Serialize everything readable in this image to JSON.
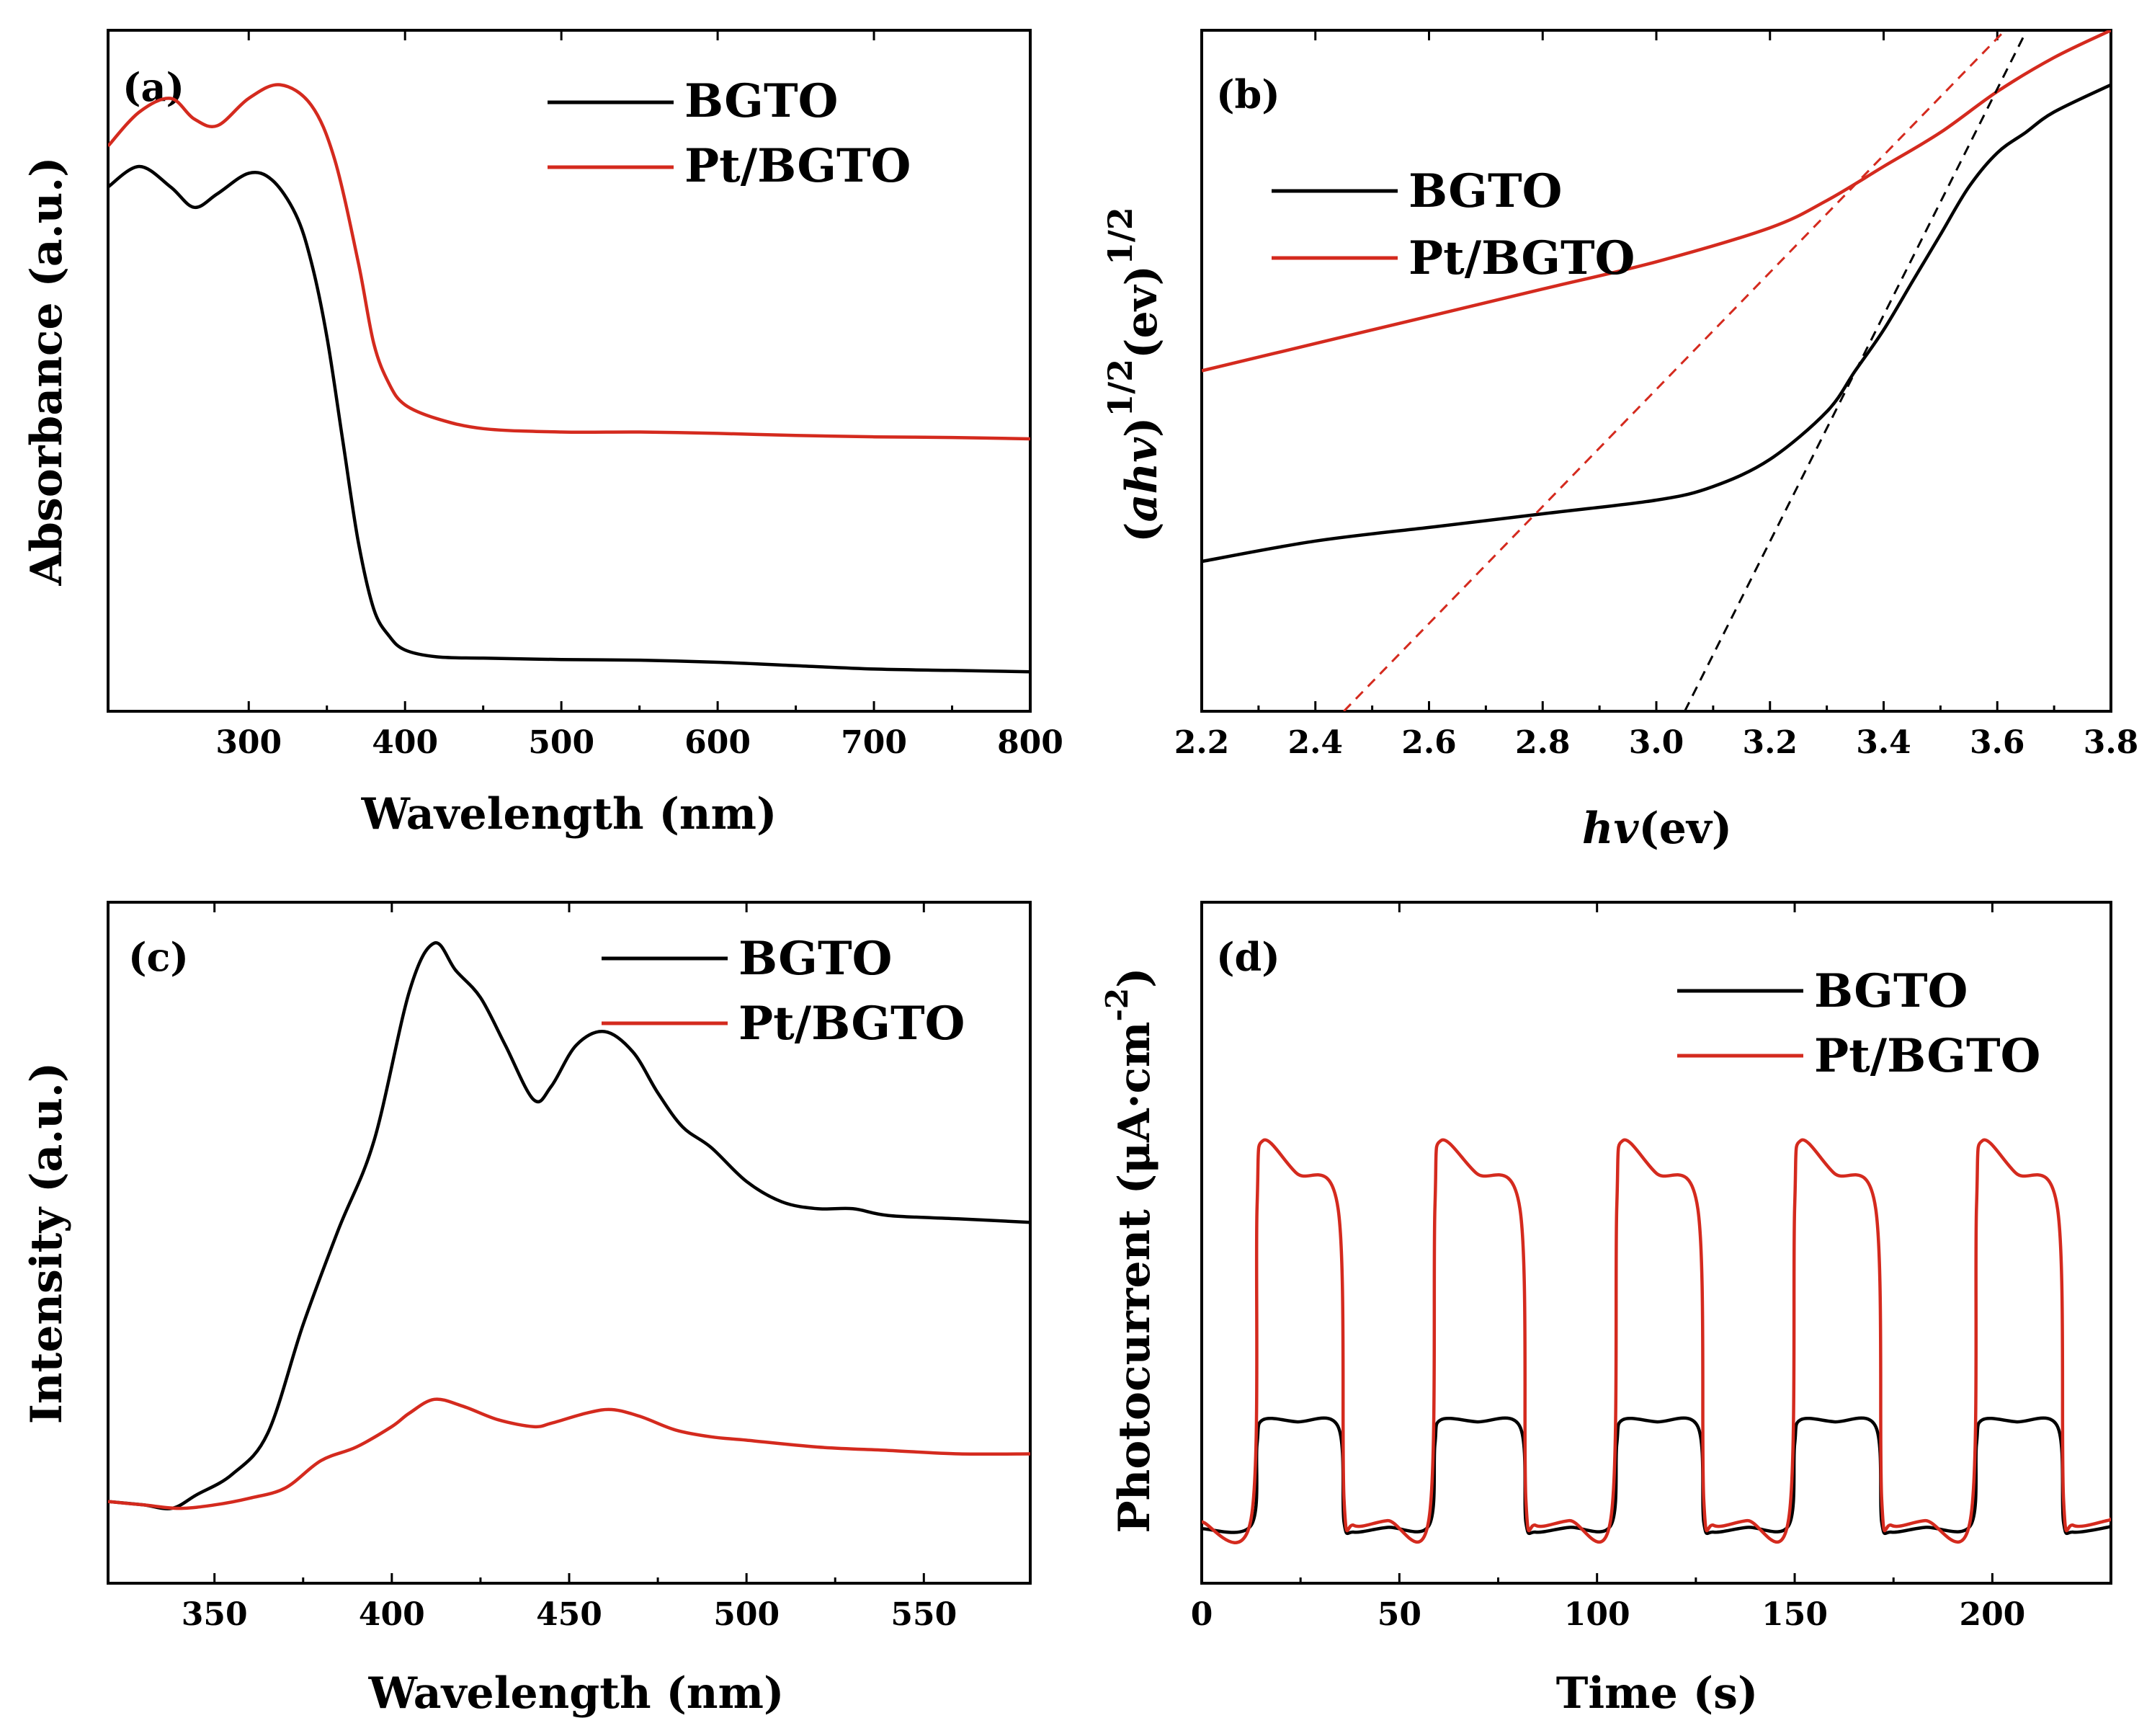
{
  "legend_labels": {
    "bgto": "BGTO",
    "pt_bgto": "Pt/BGTO"
  },
  "colors": {
    "bgto": "#000000",
    "pt_bgto": "#d42a1e",
    "axis": "#000000"
  },
  "chart_data": [
    {
      "id": "a",
      "type": "line",
      "panel_label": "(a)",
      "title": "",
      "xlabel": "Wavelength (nm)",
      "ylabel": "Absorbance (a.u.)",
      "xlim": [
        210,
        800
      ],
      "ylim": [
        0,
        1.0
      ],
      "xticks": [
        300,
        400,
        500,
        600,
        700,
        800
      ],
      "yticks_shown": false,
      "legend": [
        "BGTO",
        "Pt/BGTO"
      ],
      "legend_position": "top-right",
      "series": [
        {
          "name": "BGTO",
          "color": "#000000",
          "x": [
            210,
            230,
            250,
            265,
            280,
            300,
            315,
            330,
            340,
            350,
            360,
            370,
            380,
            390,
            400,
            420,
            450,
            500,
            550,
            600,
            650,
            700,
            750,
            800
          ],
          "y": [
            0.77,
            0.8,
            0.77,
            0.74,
            0.76,
            0.79,
            0.78,
            0.73,
            0.66,
            0.55,
            0.4,
            0.25,
            0.15,
            0.11,
            0.09,
            0.08,
            0.078,
            0.076,
            0.075,
            0.072,
            0.067,
            0.062,
            0.06,
            0.058
          ]
        },
        {
          "name": "Pt/BGTO",
          "color": "#d42a1e",
          "x": [
            210,
            230,
            250,
            265,
            280,
            300,
            320,
            340,
            355,
            370,
            380,
            390,
            400,
            420,
            450,
            500,
            550,
            600,
            650,
            700,
            750,
            800
          ],
          "y": [
            0.83,
            0.88,
            0.9,
            0.87,
            0.86,
            0.9,
            0.92,
            0.89,
            0.81,
            0.66,
            0.54,
            0.48,
            0.45,
            0.43,
            0.415,
            0.41,
            0.41,
            0.408,
            0.405,
            0.403,
            0.402,
            0.4
          ]
        }
      ]
    },
    {
      "id": "b",
      "type": "line",
      "panel_label": "(b)",
      "title": "",
      "xlabel": "hv(ev)",
      "ylabel": "(ahv)1/2(ev)1/2",
      "xlim": [
        2.2,
        3.8
      ],
      "ylim": [
        0,
        1.0
      ],
      "xticks": [
        2.2,
        2.4,
        2.6,
        2.8,
        3.0,
        3.2,
        3.4,
        3.6,
        3.8
      ],
      "xtick_labels": [
        "2.2",
        "2.4",
        "2.6",
        "2.8",
        "3.0",
        "3.2",
        "3.4",
        "3.6",
        "3.8"
      ],
      "yticks_shown": false,
      "legend": [
        "BGTO",
        "Pt/BGTO"
      ],
      "legend_position": "top-left",
      "series": [
        {
          "name": "BGTO",
          "color": "#000000",
          "x": [
            2.2,
            2.4,
            2.6,
            2.8,
            3.0,
            3.1,
            3.2,
            3.3,
            3.35,
            3.4,
            3.45,
            3.5,
            3.55,
            3.6,
            3.65,
            3.7,
            3.8
          ],
          "y": [
            0.22,
            0.25,
            0.27,
            0.29,
            0.31,
            0.33,
            0.37,
            0.44,
            0.5,
            0.56,
            0.63,
            0.7,
            0.77,
            0.82,
            0.85,
            0.88,
            0.92
          ]
        },
        {
          "name": "Pt/BGTO",
          "color": "#d42a1e",
          "x": [
            2.2,
            2.4,
            2.6,
            2.8,
            3.0,
            3.2,
            3.3,
            3.4,
            3.5,
            3.6,
            3.7,
            3.8
          ],
          "y": [
            0.5,
            0.54,
            0.58,
            0.62,
            0.66,
            0.71,
            0.75,
            0.8,
            0.85,
            0.91,
            0.96,
            1.0
          ]
        },
        {
          "name": "BGTO fit",
          "color": "#000000",
          "dashed": true,
          "x": [
            3.05,
            3.73
          ],
          "y": [
            0.0,
            1.13
          ]
        },
        {
          "name": "Pt/BGTO fit",
          "color": "#d42a1e",
          "dashed": true,
          "x": [
            2.45,
            3.73
          ],
          "y": [
            0.0,
            1.1
          ]
        }
      ]
    },
    {
      "id": "c",
      "type": "line",
      "panel_label": "(c)",
      "title": "",
      "xlabel": "Wavelength (nm)",
      "ylabel": "Intensity (a.u.)",
      "xlim": [
        320,
        580
      ],
      "ylim": [
        0,
        1.0
      ],
      "xticks": [
        350,
        400,
        450,
        500,
        550
      ],
      "yticks_shown": false,
      "legend": [
        "BGTO",
        "Pt/BGTO"
      ],
      "legend_position": "top-right",
      "series": [
        {
          "name": "BGTO",
          "color": "#000000",
          "x": [
            320,
            330,
            338,
            345,
            355,
            365,
            375,
            385,
            395,
            405,
            412,
            418,
            425,
            432,
            440,
            445,
            452,
            460,
            468,
            475,
            482,
            490,
            500,
            510,
            520,
            530,
            540,
            560,
            580
          ],
          "y": [
            0.12,
            0.115,
            0.11,
            0.13,
            0.16,
            0.22,
            0.38,
            0.52,
            0.65,
            0.87,
            0.94,
            0.9,
            0.86,
            0.79,
            0.71,
            0.73,
            0.79,
            0.81,
            0.78,
            0.72,
            0.67,
            0.64,
            0.59,
            0.56,
            0.55,
            0.55,
            0.54,
            0.535,
            0.53
          ]
        },
        {
          "name": "Pt/BGTO",
          "color": "#d42a1e",
          "x": [
            320,
            330,
            340,
            350,
            360,
            370,
            380,
            390,
            400,
            405,
            412,
            420,
            430,
            440,
            445,
            455,
            462,
            470,
            480,
            490,
            500,
            520,
            540,
            560,
            580
          ],
          "y": [
            0.12,
            0.115,
            0.11,
            0.115,
            0.125,
            0.14,
            0.18,
            0.2,
            0.23,
            0.25,
            0.27,
            0.26,
            0.24,
            0.23,
            0.235,
            0.25,
            0.255,
            0.245,
            0.225,
            0.215,
            0.21,
            0.2,
            0.195,
            0.19,
            0.19
          ]
        }
      ]
    },
    {
      "id": "d",
      "type": "line",
      "panel_label": "(d)",
      "title": "",
      "xlabel": "Time (s)",
      "ylabel": "Photocurrent (μA·cm-2)",
      "xlim": [
        0,
        230
      ],
      "ylim": [
        0,
        1.0
      ],
      "xticks": [
        0,
        50,
        100,
        150,
        200
      ],
      "yticks_shown": false,
      "legend": [
        "BGTO",
        "Pt/BGTO"
      ],
      "legend_position": "top-right",
      "light_on_off_s": [
        [
          13,
          35
        ],
        [
          58,
          81
        ],
        [
          104,
          126
        ],
        [
          149,
          171
        ],
        [
          195,
          217
        ]
      ],
      "series": [
        {
          "name": "BGTO",
          "color": "#000000",
          "baseline": 0.08,
          "on_start": 0.24,
          "on_end": 0.23
        },
        {
          "name": "Pt/BGTO",
          "color": "#d42a1e",
          "baseline": 0.09,
          "on_start": 0.65,
          "on_end": 0.55
        }
      ]
    }
  ]
}
